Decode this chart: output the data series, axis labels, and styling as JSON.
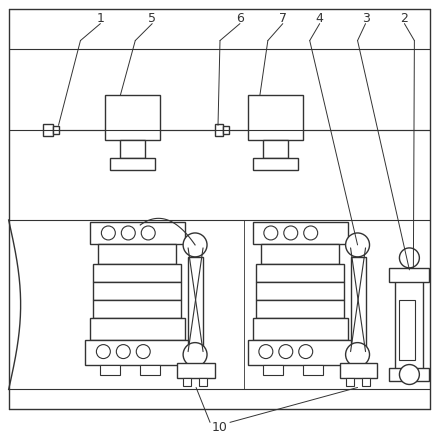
{
  "bg_color": "#ffffff",
  "line_color": "#333333",
  "figsize": [
    4.39,
    4.41
  ],
  "dpi": 100
}
